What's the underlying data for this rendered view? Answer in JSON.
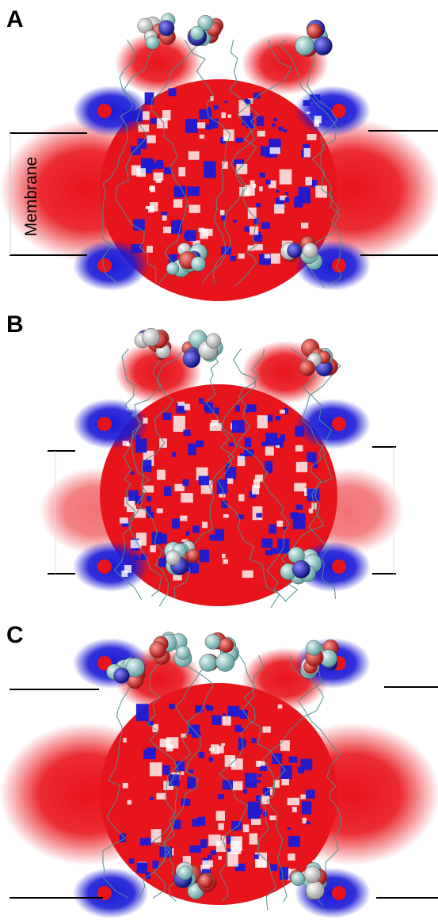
{
  "panels": [
    {
      "letter": "A"
    },
    {
      "letter": "B"
    },
    {
      "letter": "C"
    }
  ],
  "membrane_label": "Membrane",
  "colors": {
    "negative_potential": "#e8141b",
    "positive_potential": "#1a1ad6",
    "backbone": "#4f8f8c",
    "carbon_atom": "#8cc6c6",
    "oxygen_atom": "#d8201c",
    "nitrogen_atom": "#2424b8",
    "hydrogen_atom": "#e6e6e6",
    "membrane_line": "#000000"
  }
}
